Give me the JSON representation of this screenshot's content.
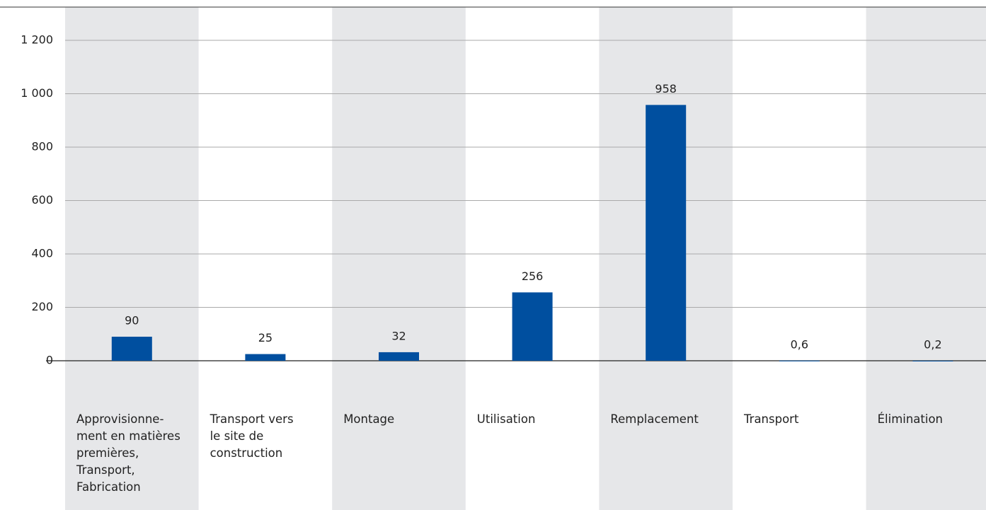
{
  "chart_data": {
    "type": "bar",
    "categories": [
      "Approvisionne-\nment en matières\npremières,\nTransport,\nFabrication",
      "Transport vers\nle site de\nconstruction",
      "Montage",
      "Utilisation",
      "Remplacement",
      "Transport",
      "Élimination"
    ],
    "values": [
      90,
      25,
      32,
      256,
      958,
      0.6,
      0.2
    ],
    "value_labels": [
      "90",
      "25",
      "32",
      "256",
      "958",
      "0,6",
      "0,2"
    ],
    "color": "#004f9f",
    "ylim": [
      0,
      1200
    ],
    "yticks": [
      0,
      200,
      400,
      600,
      800,
      {
        "value": 1000,
        "label": "1 000"
      },
      {
        "value": 1200,
        "label": "1 200"
      }
    ],
    "grid": true
  }
}
